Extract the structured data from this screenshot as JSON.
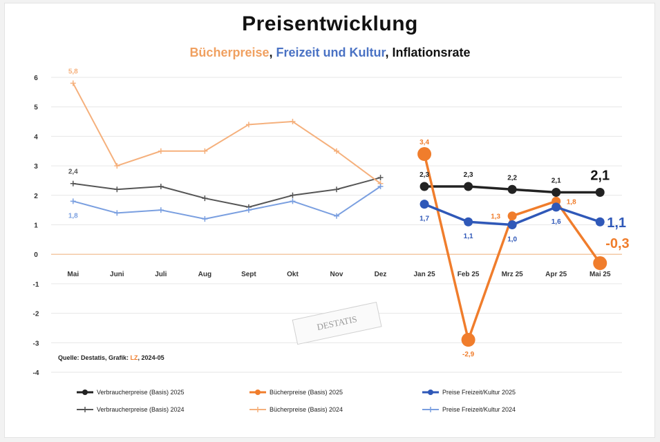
{
  "chart_data": {
    "type": "line",
    "title": "Preisentwicklung",
    "subtitle_parts": [
      {
        "text": "Bücherpreise",
        "color": "#f0a060"
      },
      {
        "text": ", ",
        "color": "#111111"
      },
      {
        "text": "Freizeit und Kultur",
        "color": "#4a72c4"
      },
      {
        "text": ", Inflationsrate",
        "color": "#111111"
      }
    ],
    "source_prefix": "Quelle: Destatis, Grafik: ",
    "source_highlight": "LZ",
    "source_suffix": ", 2024-05",
    "ylim": [
      -4,
      6
    ],
    "yticks": [
      -4,
      -3,
      -2,
      -1,
      0,
      1,
      2,
      3,
      4,
      5,
      6
    ],
    "categories": [
      "Mai",
      "Juni",
      "Juli",
      "Aug",
      "Sept",
      "Okt",
      "Nov",
      "Dez",
      "Jan 25",
      "Feb 25",
      "Mrz 25",
      "Apr 25",
      "Mai 25"
    ],
    "grid": true,
    "series": [
      {
        "name": "Verbraucherpreise (Basis) 2024",
        "color": "#555555",
        "width": 2,
        "marker": "cross",
        "values": [
          2.4,
          2.2,
          2.3,
          1.9,
          1.6,
          2.0,
          2.2,
          2.6,
          null,
          null,
          null,
          null,
          null
        ]
      },
      {
        "name": "Bücherpreise (Basis) 2024",
        "color": "#f5b07c",
        "width": 2,
        "marker": "cross",
        "values": [
          5.8,
          3.0,
          3.5,
          3.5,
          4.4,
          4.5,
          3.5,
          2.4,
          null,
          null,
          null,
          null,
          null
        ]
      },
      {
        "name": "Preise Freizeit/Kultur 2024",
        "color": "#7a9fe0",
        "width": 2,
        "marker": "cross",
        "values": [
          1.8,
          1.4,
          1.5,
          1.2,
          1.5,
          1.8,
          1.3,
          2.3,
          null,
          null,
          null,
          null,
          null
        ]
      },
      {
        "name": "Verbraucherpreise (Basis) 2025",
        "color": "#222222",
        "width": 3.5,
        "marker": "dot",
        "values": [
          null,
          null,
          null,
          null,
          null,
          null,
          null,
          null,
          2.3,
          2.3,
          2.2,
          2.1,
          2.1
        ]
      },
      {
        "name": "Bücherpreise (Basis) 2025",
        "color": "#f07d2c",
        "width": 3.5,
        "marker": "dot",
        "values": [
          null,
          null,
          null,
          null,
          null,
          null,
          null,
          null,
          3.4,
          -2.9,
          1.3,
          1.8,
          -0.3
        ]
      },
      {
        "name": "Preise Freizeit/Kultur 2025",
        "color": "#2f58b8",
        "width": 3.5,
        "marker": "dot",
        "values": [
          null,
          null,
          null,
          null,
          null,
          null,
          null,
          null,
          1.7,
          1.1,
          1.0,
          1.6,
          1.1
        ]
      }
    ],
    "annotations": [
      {
        "text": "5,8",
        "color": "#f5b07c",
        "series": 1,
        "index": 0,
        "pos": "above",
        "size": 10
      },
      {
        "text": "2,4",
        "color": "#555555",
        "series": 0,
        "index": 0,
        "pos": "above",
        "size": 10
      },
      {
        "text": "1,8",
        "color": "#7a9fe0",
        "series": 2,
        "index": 0,
        "pos": "below",
        "size": 10
      },
      {
        "text": "3,4",
        "color": "#f07d2c",
        "series": 4,
        "index": 8,
        "pos": "above",
        "size": 10
      },
      {
        "text": "2,3",
        "color": "#222222",
        "series": 3,
        "index": 8,
        "pos": "above",
        "size": 10
      },
      {
        "text": "1,7",
        "color": "#2f58b8",
        "series": 5,
        "index": 8,
        "pos": "below",
        "size": 10
      },
      {
        "text": "2,3",
        "color": "#222222",
        "series": 3,
        "index": 9,
        "pos": "above",
        "size": 10
      },
      {
        "text": "1,1",
        "color": "#2f58b8",
        "series": 5,
        "index": 9,
        "pos": "below",
        "size": 10
      },
      {
        "text": "-2,9",
        "color": "#f07d2c",
        "series": 4,
        "index": 9,
        "pos": "below",
        "size": 10
      },
      {
        "text": "2,2",
        "color": "#222222",
        "series": 3,
        "index": 10,
        "pos": "above",
        "size": 10
      },
      {
        "text": "1,3",
        "color": "#f07d2c",
        "series": 4,
        "index": 10,
        "pos": "left",
        "size": 10
      },
      {
        "text": "1,0",
        "color": "#2f58b8",
        "series": 5,
        "index": 10,
        "pos": "below",
        "size": 10
      },
      {
        "text": "2,1",
        "color": "#222222",
        "series": 3,
        "index": 11,
        "pos": "above",
        "size": 10
      },
      {
        "text": "1,8",
        "color": "#f07d2c",
        "series": 4,
        "index": 11,
        "pos": "right",
        "size": 10
      },
      {
        "text": "1,6",
        "color": "#2f58b8",
        "series": 5,
        "index": 11,
        "pos": "below",
        "size": 10
      },
      {
        "text": "2,1",
        "color": "#111111",
        "series": 3,
        "index": 12,
        "pos": "above",
        "size": 20
      },
      {
        "text": "1,1",
        "color": "#2f58b8",
        "series": 5,
        "index": 12,
        "pos": "right",
        "size": 20
      },
      {
        "text": "-0,3",
        "color": "#f07d2c",
        "series": 4,
        "index": 12,
        "pos": "right-up",
        "size": 20
      }
    ],
    "legend_position": "bottom",
    "watermark_text": "DESTATIS"
  }
}
